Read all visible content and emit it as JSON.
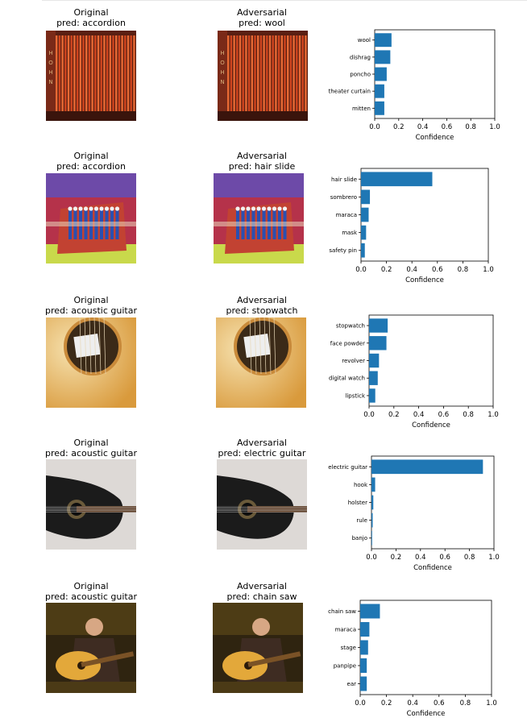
{
  "figure": {
    "original_label": "Original",
    "adversarial_label": "Adversarial",
    "xlabel": "Confidence",
    "xticks": [
      "0.0",
      "0.2",
      "0.4",
      "0.6",
      "0.8",
      "1.0"
    ],
    "bar_color": "#1f77b4",
    "rows": [
      {
        "original_pred": "pred: accordion",
        "adversarial_pred": "pred: wool",
        "image": "accordion-close-up"
      },
      {
        "original_pred": "pred: accordion",
        "adversarial_pred": "pred: hair slide",
        "image": "accordion-poster"
      },
      {
        "original_pred": "pred: acoustic guitar",
        "adversarial_pred": "pred: stopwatch",
        "image": "guitar-soundhole"
      },
      {
        "original_pred": "pred: acoustic guitar",
        "adversarial_pred": "pred: electric guitar",
        "image": "black-guitar"
      },
      {
        "original_pred": "pred: acoustic guitar",
        "adversarial_pred": "pred: chain saw",
        "image": "guitarist-outdoors"
      }
    ]
  },
  "chart_data": [
    {
      "type": "bar",
      "orientation": "horizontal",
      "categories": [
        "wool",
        "dishrag",
        "poncho",
        "theater curtain",
        "mitten"
      ],
      "values": [
        0.14,
        0.13,
        0.1,
        0.08,
        0.08
      ],
      "xlabel": "Confidence",
      "xlim": [
        0,
        1
      ]
    },
    {
      "type": "bar",
      "orientation": "horizontal",
      "categories": [
        "hair slide",
        "sombrero",
        "maraca",
        "mask",
        "safety pin"
      ],
      "values": [
        0.56,
        0.07,
        0.06,
        0.04,
        0.03
      ],
      "xlabel": "Confidence",
      "xlim": [
        0,
        1
      ]
    },
    {
      "type": "bar",
      "orientation": "horizontal",
      "categories": [
        "stopwatch",
        "face powder",
        "revolver",
        "digital watch",
        "lipstick"
      ],
      "values": [
        0.15,
        0.14,
        0.08,
        0.07,
        0.05
      ],
      "xlabel": "Confidence",
      "xlim": [
        0,
        1
      ]
    },
    {
      "type": "bar",
      "orientation": "horizontal",
      "categories": [
        "electric guitar",
        "hook",
        "holster",
        "rule",
        "banjo"
      ],
      "values": [
        0.91,
        0.03,
        0.015,
        0.01,
        0.005
      ],
      "xlabel": "Confidence",
      "xlim": [
        0,
        1
      ]
    },
    {
      "type": "bar",
      "orientation": "horizontal",
      "categories": [
        "chain saw",
        "maraca",
        "stage",
        "panpipe",
        "ear"
      ],
      "values": [
        0.15,
        0.07,
        0.06,
        0.05,
        0.05
      ],
      "xlabel": "Confidence",
      "xlim": [
        0,
        1
      ]
    }
  ]
}
